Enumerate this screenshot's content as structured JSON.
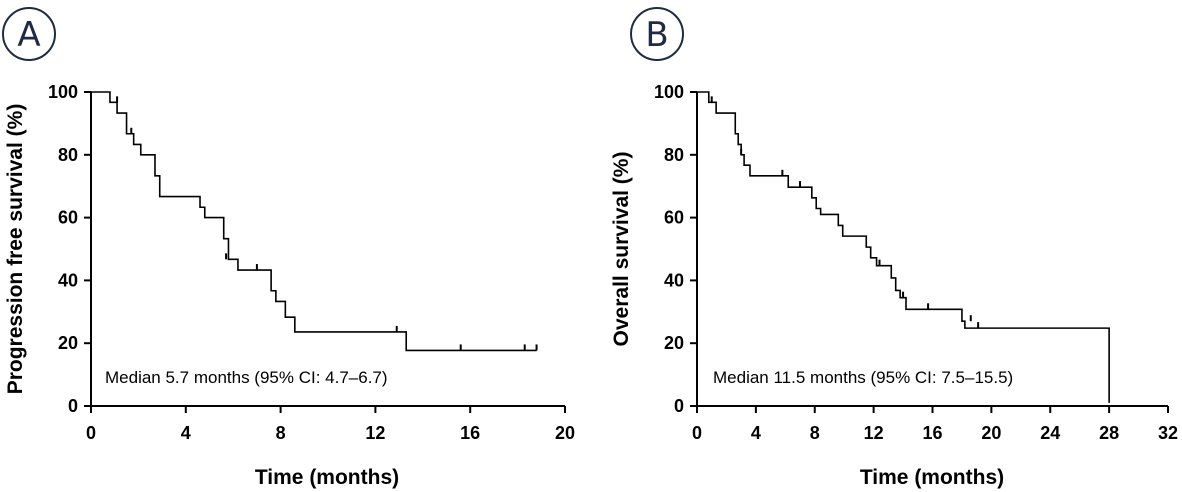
{
  "chart_data": [
    {
      "type": "line",
      "step": true,
      "panel_label": "A",
      "title": "",
      "xlabel": "Time (months)",
      "ylabel": "Progression free survival (%)",
      "xlim": [
        0,
        20
      ],
      "ylim": [
        0,
        100
      ],
      "xticks": [
        0,
        4,
        8,
        12,
        16,
        20
      ],
      "yticks": [
        0,
        20,
        40,
        60,
        80,
        100
      ],
      "series": [
        {
          "name": "PFS",
          "x": [
            0,
            0.8,
            1.1,
            1.5,
            1.8,
            2.1,
            2.7,
            2.9,
            4.6,
            4.8,
            5.6,
            5.8,
            6.2,
            7.6,
            7.8,
            8.2,
            8.6,
            13.3,
            18.8
          ],
          "y": [
            100,
            96.7,
            93.3,
            86.7,
            83.3,
            80.0,
            73.3,
            66.7,
            63.3,
            60.0,
            53.3,
            46.7,
            43.3,
            36.7,
            33.3,
            28.3,
            23.6,
            17.7,
            17.7
          ]
        }
      ],
      "censored": {
        "x": [
          1.1,
          1.7,
          5.7,
          7.0,
          12.9,
          15.6,
          18.3,
          18.8
        ],
        "y": [
          96.7,
          86.7,
          46.7,
          43.3,
          23.6,
          17.7,
          17.7,
          17.7
        ]
      },
      "annotation": "Median 5.7 months (95% CI: 4.7–6.7)"
    },
    {
      "type": "line",
      "step": true,
      "panel_label": "B",
      "title": "",
      "xlabel": "Time (months)",
      "ylabel": "Overall survival (%)",
      "xlim": [
        0,
        32
      ],
      "ylim": [
        0,
        100
      ],
      "xticks": [
        0,
        4,
        8,
        12,
        16,
        20,
        24,
        28,
        32
      ],
      "yticks": [
        0,
        20,
        40,
        60,
        80,
        100
      ],
      "series": [
        {
          "name": "OS",
          "x": [
            0,
            0.8,
            1.3,
            2.6,
            2.8,
            3.0,
            3.2,
            3.6,
            3.9,
            6.0,
            6.2,
            7.8,
            8.1,
            8.4,
            9.6,
            9.9,
            10.2,
            11.5,
            11.8,
            12.2,
            13.2,
            13.5,
            13.8,
            14.2,
            18.0,
            18.2,
            28.0
          ],
          "y": [
            100,
            96.7,
            93.3,
            86.7,
            83.3,
            80.0,
            76.7,
            73.3,
            73.3,
            73.3,
            69.7,
            66.3,
            62.9,
            61.0,
            57.5,
            54.1,
            54.1,
            50.6,
            47.2,
            44.7,
            40.8,
            36.8,
            34.5,
            30.8,
            27.0,
            24.8,
            1.0
          ],
          "note": "step curve ends at 28 months"
        }
      ],
      "censored": {
        "x": [
          1.0,
          3.0,
          5.8,
          7.0,
          12.4,
          14.0,
          15.7,
          18.6,
          19.1
        ],
        "y": [
          96.7,
          80.0,
          73.3,
          69.7,
          44.7,
          34.5,
          30.8,
          27.0,
          24.8
        ]
      },
      "annotation": "Median 11.5 months (95% CI: 7.5–15.5)"
    }
  ]
}
